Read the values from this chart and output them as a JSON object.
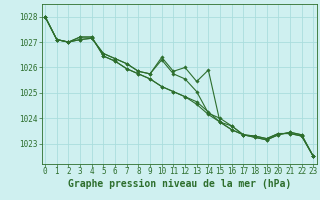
{
  "background_color": "#cff0f0",
  "grid_color_major": "#aadddd",
  "grid_color_minor": "#c5eaea",
  "line_color": "#2d6e2d",
  "marker_color": "#2d6e2d",
  "xlabel": "Graphe pression niveau de la mer (hPa)",
  "xlabel_fontsize": 7.0,
  "tick_fontsize": 5.5,
  "ylabel_ticks": [
    1023,
    1024,
    1025,
    1026,
    1027,
    1028
  ],
  "xlim": [
    -0.3,
    23.3
  ],
  "ylim": [
    1022.2,
    1028.5
  ],
  "xticks": [
    0,
    1,
    2,
    3,
    4,
    5,
    6,
    7,
    8,
    9,
    10,
    11,
    12,
    13,
    14,
    15,
    16,
    17,
    18,
    19,
    20,
    21,
    22,
    23
  ],
  "series": [
    [
      1028.0,
      1027.1,
      1027.0,
      1027.1,
      1027.15,
      1026.55,
      1026.35,
      1026.15,
      1025.85,
      1025.75,
      1026.4,
      1025.85,
      1026.0,
      1025.45,
      1025.9,
      1023.85,
      1023.7,
      1023.35,
      1023.3,
      1023.2,
      1023.4,
      1023.4,
      1023.3,
      1022.5
    ],
    [
      1028.0,
      1027.1,
      1027.0,
      1027.1,
      1027.15,
      1026.55,
      1026.35,
      1026.15,
      1025.85,
      1025.75,
      1026.3,
      1025.75,
      1025.55,
      1025.05,
      1024.2,
      1024.0,
      1023.7,
      1023.35,
      1023.3,
      1023.2,
      1023.4,
      1023.4,
      1023.3,
      1022.5
    ],
    [
      1028.0,
      1027.1,
      1027.0,
      1027.2,
      1027.2,
      1026.45,
      1026.25,
      1025.95,
      1025.75,
      1025.55,
      1025.25,
      1025.05,
      1024.85,
      1024.65,
      1024.25,
      1023.85,
      1023.55,
      1023.35,
      1023.25,
      1023.15,
      1023.35,
      1023.45,
      1023.35,
      1022.5
    ],
    [
      1028.0,
      1027.1,
      1027.0,
      1027.2,
      1027.2,
      1026.45,
      1026.25,
      1025.95,
      1025.75,
      1025.55,
      1025.25,
      1025.05,
      1024.85,
      1024.55,
      1024.15,
      1023.85,
      1023.55,
      1023.35,
      1023.25,
      1023.15,
      1023.35,
      1023.45,
      1023.35,
      1022.5
    ]
  ]
}
